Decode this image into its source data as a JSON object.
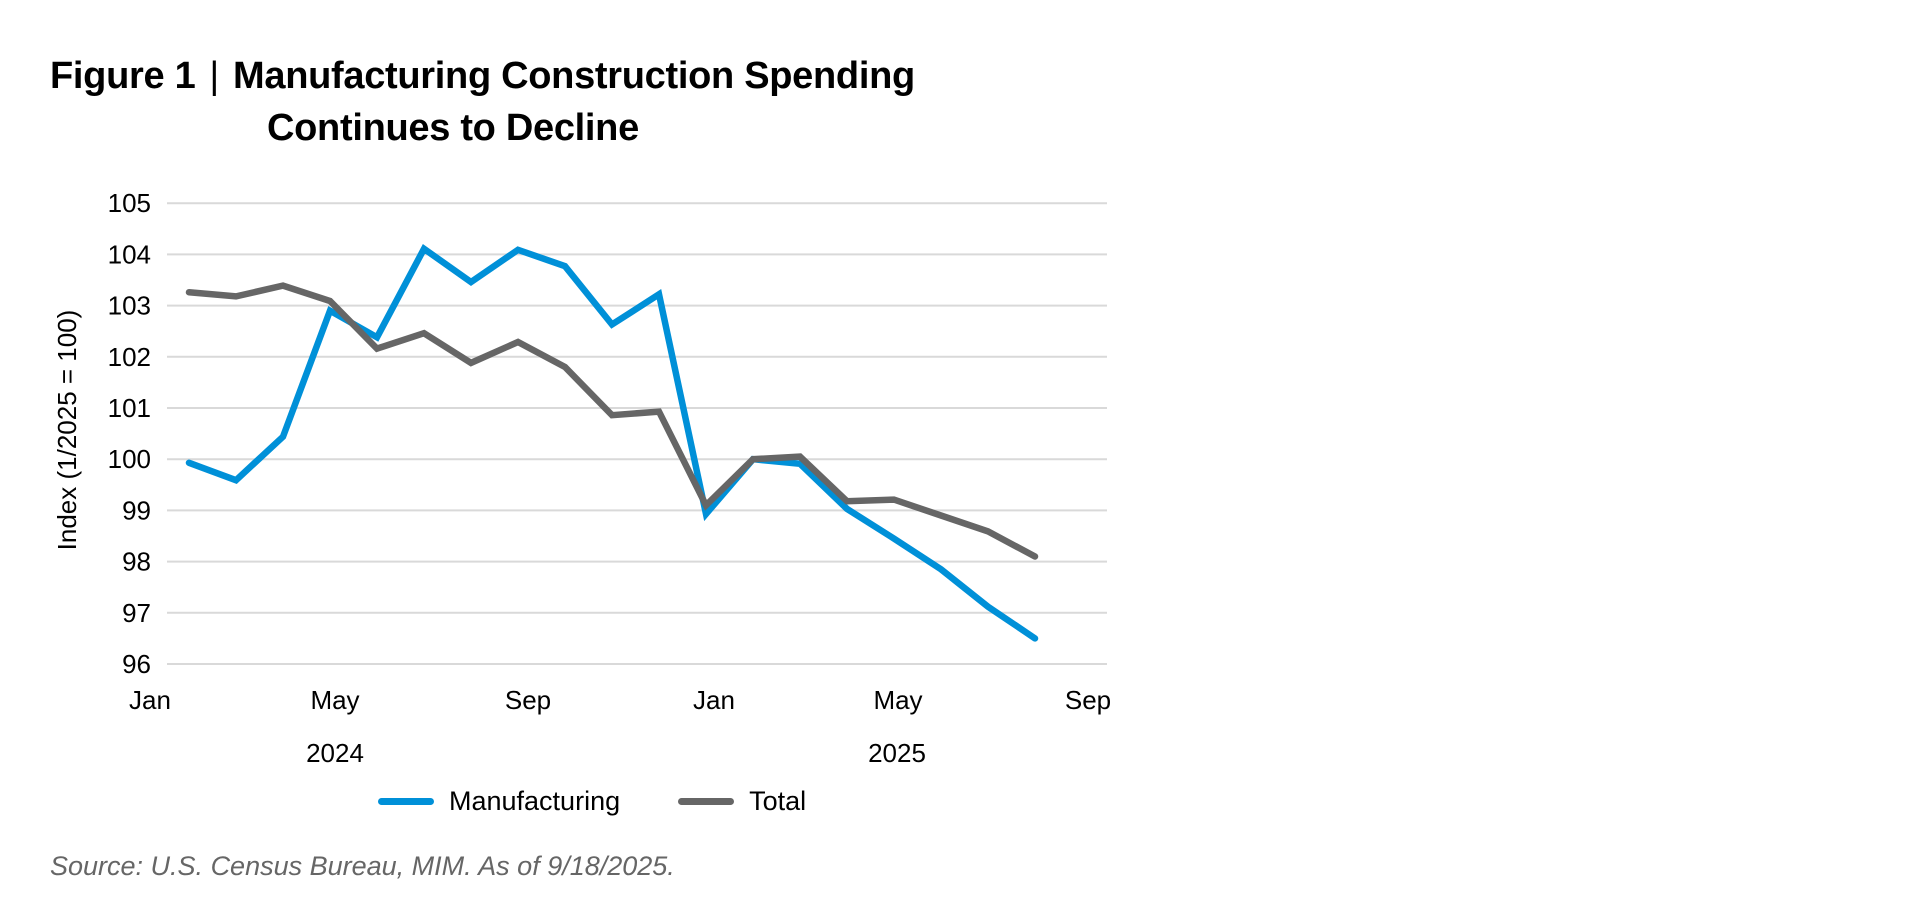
{
  "title": {
    "figure_label": "Figure 1",
    "separator": "|",
    "line1": "Manufacturing Construction Spending",
    "line2": "Continues to Decline"
  },
  "source": "Source: U.S. Census Bureau, MIM. As of 9/18/2025.",
  "legend": [
    {
      "label": "Manufacturing",
      "color": "#0090D8"
    },
    {
      "label": "Total",
      "color": "#666666"
    }
  ],
  "chart_data": {
    "type": "line",
    "title": "Figure 1 | Manufacturing Construction Spending Continues to Decline",
    "xlabel": "",
    "ylabel": "Index (1/2025 = 100)",
    "ylim": [
      96,
      105
    ],
    "yticks": [
      96,
      97,
      98,
      99,
      100,
      101,
      102,
      103,
      104,
      105
    ],
    "grid": true,
    "legend_position": "bottom",
    "x_tick_labels": [
      {
        "label": "Jan",
        "year": "2024"
      },
      {
        "label": "May",
        "year": "2024"
      },
      {
        "label": "Sep",
        "year": "2024"
      },
      {
        "label": "Jan",
        "year": "2025"
      },
      {
        "label": "May",
        "year": "2025"
      },
      {
        "label": "Sep",
        "year": "2025"
      }
    ],
    "year_labels": [
      "2024",
      "2025"
    ],
    "x": [
      "2024-01",
      "2024-02",
      "2024-03",
      "2024-04",
      "2024-05",
      "2024-06",
      "2024-07",
      "2024-08",
      "2024-09",
      "2024-10",
      "2024-11",
      "2024-12",
      "2025-01",
      "2025-02",
      "2025-03",
      "2025-04",
      "2025-05",
      "2025-06",
      "2025-07"
    ],
    "series": [
      {
        "name": "Manufacturing",
        "color": "#0090D8",
        "values": [
          99.93,
          99.59,
          100.44,
          102.9,
          102.38,
          104.11,
          103.46,
          104.09,
          103.77,
          102.63,
          103.22,
          98.93,
          100.0,
          99.91,
          99.03,
          98.45,
          97.85,
          97.12,
          96.5
        ]
      },
      {
        "name": "Total",
        "color": "#666666",
        "values": [
          103.26,
          103.18,
          103.39,
          103.09,
          102.16,
          102.46,
          101.88,
          102.29,
          101.8,
          100.86,
          100.93,
          99.1,
          100.0,
          100.05,
          99.18,
          99.21,
          98.9,
          98.59,
          98.1
        ]
      }
    ]
  }
}
